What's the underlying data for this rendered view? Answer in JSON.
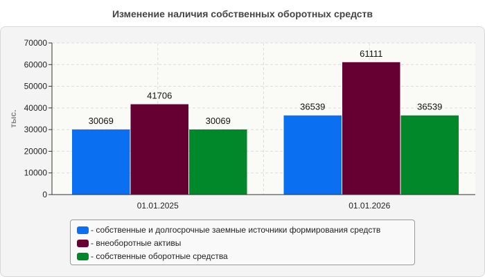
{
  "chart_data": {
    "type": "bar",
    "title": "Изменение наличия собственных оборотных средств",
    "ylabel": "тыс.",
    "ylim": [
      0,
      70000
    ],
    "yticks": [
      "0",
      "10000",
      "20000",
      "30000",
      "40000",
      "50000",
      "60000",
      "70000"
    ],
    "categories": [
      "01.01.2025",
      "01.01.2026"
    ],
    "grid": true,
    "legend_position": "bottom",
    "series": [
      {
        "name": "- собственные и долгосрочные заемные источники формирования средств",
        "color": "#0a6ff0",
        "values": [
          30069,
          36539
        ]
      },
      {
        "name": "- внеоборотные активы",
        "color": "#660033",
        "values": [
          41706,
          61111
        ]
      },
      {
        "name": "- собственные оборотные средства",
        "color": "#00882b",
        "values": [
          30069,
          36539
        ]
      }
    ]
  }
}
